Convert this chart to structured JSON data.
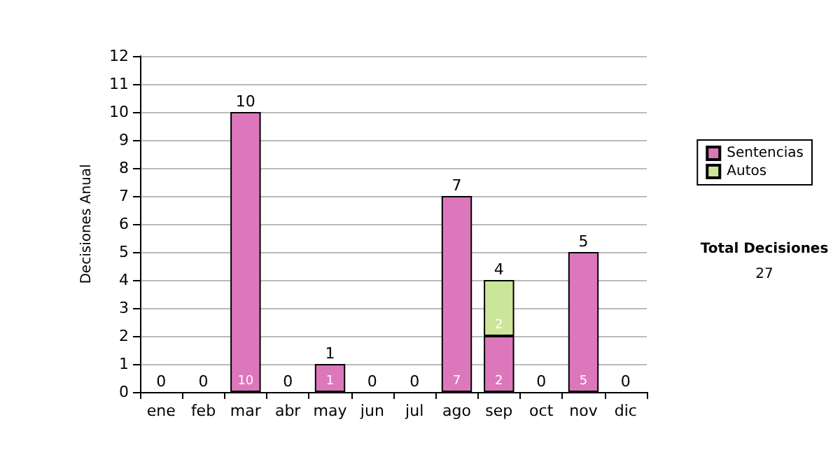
{
  "chart_data": {
    "type": "bar",
    "stacked": true,
    "ylabel": "Decisiones Anual",
    "categories": [
      "ene",
      "feb",
      "mar",
      "abr",
      "may",
      "jun",
      "jul",
      "ago",
      "sep",
      "oct",
      "nov",
      "dic"
    ],
    "series": [
      {
        "name": "Sentencias",
        "color": "#dd77bb",
        "values": [
          0,
          0,
          10,
          0,
          1,
          0,
          0,
          7,
          2,
          0,
          5,
          0
        ],
        "value_labels": [
          null,
          null,
          "10",
          null,
          "1",
          null,
          null,
          "7",
          "2",
          null,
          "5",
          null
        ]
      },
      {
        "name": "Autos",
        "color": "#cce699",
        "values": [
          0,
          0,
          0,
          0,
          0,
          0,
          0,
          0,
          2,
          0,
          0,
          0
        ],
        "value_labels": [
          null,
          null,
          null,
          null,
          null,
          null,
          null,
          null,
          "2",
          null,
          null,
          null
        ]
      }
    ],
    "totals": [
      "0",
      "0",
      "10",
      "0",
      "1",
      "0",
      "0",
      "7",
      "4",
      "0",
      "5",
      "0"
    ],
    "ylim": [
      0,
      12
    ],
    "yticks": [
      0,
      1,
      2,
      3,
      4,
      5,
      6,
      7,
      8,
      9,
      10,
      11,
      12
    ],
    "grid": "y",
    "legend": "right",
    "annotations": [
      "Total Decisiones",
      "27"
    ]
  }
}
